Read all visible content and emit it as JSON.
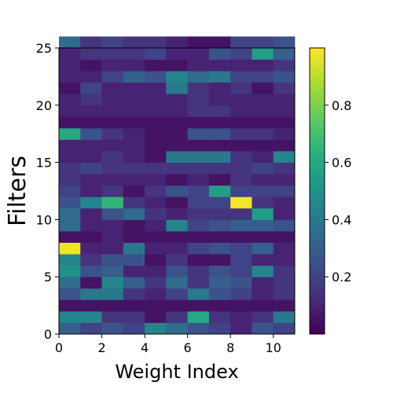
{
  "chart_data": {
    "type": "heatmap",
    "title": "",
    "xlabel": "Weight Index",
    "ylabel": "Filters",
    "xlim": [
      0,
      11
    ],
    "ylim": [
      0,
      25
    ],
    "x_ticks": [
      0,
      2,
      4,
      6,
      8,
      10
    ],
    "y_ticks": [
      0,
      5,
      10,
      15,
      20,
      25
    ],
    "colormap": "viridis",
    "colorbar": {
      "range": [
        0.0,
        1.0
      ],
      "ticks": [
        0.2,
        0.4,
        0.6,
        0.8
      ],
      "tick_labels": [
        "0.2",
        "0.4",
        "0.6",
        "0.8"
      ]
    },
    "grid": false,
    "rows_bottom_to_top": [
      [
        0.3,
        0.2,
        0.25,
        0.2,
        0.45,
        0.35,
        0.25,
        0.2,
        0.1,
        0.25,
        0.2
      ],
      [
        0.45,
        0.45,
        0.15,
        0.15,
        0.05,
        0.15,
        0.6,
        0.15,
        0.1,
        0.15,
        0.4
      ],
      [
        0.05,
        0.05,
        0.05,
        0.05,
        0.05,
        0.05,
        0.05,
        0.05,
        0.05,
        0.05,
        0.05
      ],
      [
        0.25,
        0.4,
        0.4,
        0.15,
        0.1,
        0.2,
        0.4,
        0.25,
        0.2,
        0.1,
        0.15
      ],
      [
        0.35,
        0.05,
        0.45,
        0.3,
        0.15,
        0.35,
        0.15,
        0.3,
        0.25,
        0.1,
        0.15
      ],
      [
        0.5,
        0.25,
        0.3,
        0.1,
        0.1,
        0.25,
        0.15,
        0.25,
        0.2,
        0.45,
        0.15
      ],
      [
        0.45,
        0.15,
        0.25,
        0.25,
        0.05,
        0.15,
        0.05,
        0.05,
        0.2,
        0.1,
        0.1
      ],
      [
        0.98,
        0.1,
        0.1,
        0.4,
        0.1,
        0.1,
        0.2,
        0.25,
        0.2,
        0.3,
        0.1
      ],
      [
        0.05,
        0.05,
        0.1,
        0.05,
        0.05,
        0.05,
        0.05,
        0.05,
        0.05,
        0.05,
        0.05
      ],
      [
        0.35,
        0.1,
        0.1,
        0.05,
        0.1,
        0.45,
        0.2,
        0.25,
        0.3,
        0.3,
        0.25
      ],
      [
        0.35,
        0.1,
        0.25,
        0.35,
        0.15,
        0.1,
        0.15,
        0.15,
        0.15,
        0.55,
        0.1
      ],
      [
        0.25,
        0.45,
        0.65,
        0.15,
        0.1,
        0.05,
        0.2,
        0.2,
        0.98,
        0.15,
        0.1
      ],
      [
        0.2,
        0.1,
        0.15,
        0.05,
        0.15,
        0.25,
        0.2,
        0.55,
        0.2,
        0.2,
        0.2
      ],
      [
        0.15,
        0.1,
        0.1,
        0.1,
        0.1,
        0.05,
        0.1,
        0.05,
        0.15,
        0.1,
        0.1
      ],
      [
        0.15,
        0.2,
        0.15,
        0.15,
        0.15,
        0.15,
        0.15,
        0.15,
        0.15,
        0.2,
        0.15
      ],
      [
        0.1,
        0.1,
        0.15,
        0.1,
        0.05,
        0.4,
        0.4,
        0.4,
        0.15,
        0.1,
        0.45
      ],
      [
        0.1,
        0.1,
        0.1,
        0.1,
        0.05,
        0.05,
        0.05,
        0.05,
        0.05,
        0.05,
        0.05
      ],
      [
        0.6,
        0.25,
        0.15,
        0.1,
        0.05,
        0.05,
        0.25,
        0.25,
        0.15,
        0.15,
        0.1
      ],
      [
        0.05,
        0.05,
        0.05,
        0.05,
        0.05,
        0.05,
        0.05,
        0.05,
        0.05,
        0.05,
        0.05
      ],
      [
        0.1,
        0.1,
        0.1,
        0.1,
        0.1,
        0.1,
        0.15,
        0.15,
        0.1,
        0.1,
        0.1
      ],
      [
        0.1,
        0.15,
        0.1,
        0.1,
        0.1,
        0.1,
        0.15,
        0.1,
        0.1,
        0.1,
        0.1
      ],
      [
        0.05,
        0.2,
        0.1,
        0.1,
        0.1,
        0.4,
        0.15,
        0.1,
        0.15,
        0.05,
        0.15
      ],
      [
        0.1,
        0.1,
        0.2,
        0.3,
        0.25,
        0.45,
        0.35,
        0.4,
        0.2,
        0.2,
        0.25
      ],
      [
        0.1,
        0.05,
        0.1,
        0.1,
        0.05,
        0.05,
        0.1,
        0.1,
        0.1,
        0.1,
        0.15
      ],
      [
        0.1,
        0.15,
        0.15,
        0.15,
        0.2,
        0.1,
        0.1,
        0.25,
        0.2,
        0.55,
        0.3
      ],
      [
        0.35,
        0.15,
        0.2,
        0.15,
        0.15,
        0.1,
        0.05,
        0.05,
        0.2,
        0.2,
        0.25
      ]
    ]
  }
}
